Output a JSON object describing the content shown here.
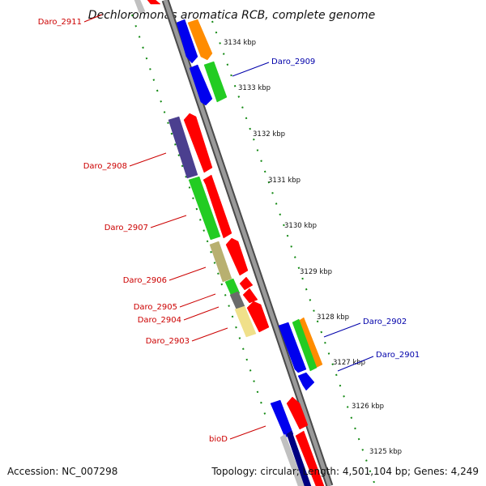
{
  "title": "Dechloromonas aromatica RCB, complete genome",
  "footer": {
    "accession": "Accession: NC_007298",
    "summary": "Topology: circular; Length: 4,501,104 bp; Genes: 4,249"
  },
  "colors": {
    "backbone": "#8c8c8c",
    "backbone_edge": "#4a4a4a",
    "tick": "#118811",
    "left_label": "#cc0000",
    "right_label": "#0000aa"
  },
  "ticks": [
    "3134 kbp",
    "3133 kbp",
    "3132 kbp",
    "3131 kbp",
    "3130 kbp",
    "3129 kbp",
    "3128 kbp",
    "3127 kbp",
    "3126 kbp",
    "3125 kbp"
  ],
  "gene_labels_left": [
    "Daro_2911",
    "Daro_2908",
    "Daro_2907",
    "Daro_2906",
    "Daro_2905",
    "Daro_2904",
    "Daro_2903",
    "bioD"
  ],
  "gene_labels_right": [
    "Daro_2909",
    "Daro_2902",
    "Daro_2901"
  ],
  "features": [
    {
      "color": "#ff0000"
    },
    {
      "color": "#ff0000"
    },
    {
      "color": "#ff0000"
    },
    {
      "color": "#ff0000"
    },
    {
      "color": "#ff0000"
    },
    {
      "color": "#ff0000"
    },
    {
      "color": "#ff0000"
    },
    {
      "color": "#ff0000"
    },
    {
      "color": "#0000ee"
    },
    {
      "color": "#0000ee"
    },
    {
      "color": "#0000ee"
    },
    {
      "color": "#0000ee"
    },
    {
      "color": "#0000ee"
    },
    {
      "color": "#ff8c00"
    },
    {
      "color": "#ff8c00"
    },
    {
      "color": "#22cc22"
    },
    {
      "color": "#22cc22"
    },
    {
      "color": "#22cc22"
    },
    {
      "color": "#22cc22"
    },
    {
      "color": "#4b3f8f"
    },
    {
      "color": "#b8b070"
    },
    {
      "color": "#6b6b6b"
    },
    {
      "color": "#f0e08a"
    },
    {
      "color": "#c0c0c0"
    },
    {
      "color": "#c0c0c0"
    },
    {
      "color": "#000080"
    }
  ]
}
